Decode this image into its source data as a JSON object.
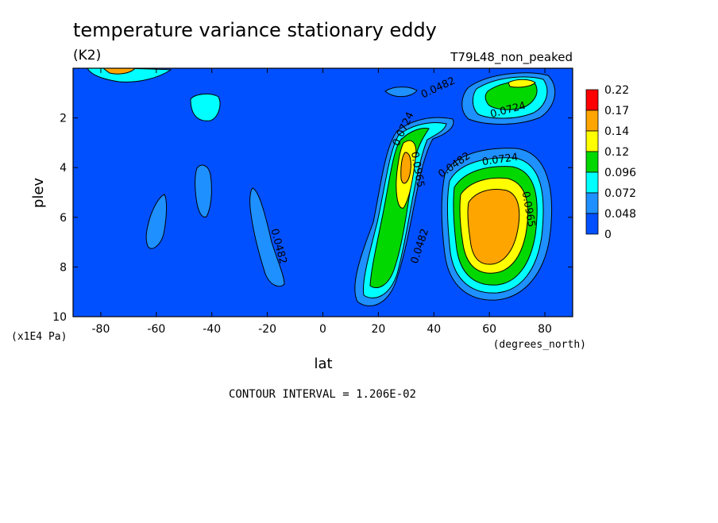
{
  "chart_data": {
    "type": "heatmap",
    "title": "temperature variance stationary eddy",
    "units": "(K2)",
    "run_label": "T79L48_non_peaked",
    "xlabel": "lat",
    "x_units": "(degrees_north)",
    "ylabel": "plev",
    "y_units": "(x1E4 Pa)",
    "xlim": [
      -90,
      90
    ],
    "ylim": [
      10,
      0
    ],
    "x_ticks": [
      -80,
      -60,
      -40,
      -20,
      0,
      20,
      40,
      60,
      80
    ],
    "x_tick_labels": [
      "-80",
      "-60",
      "-40",
      "-20",
      "0",
      "20",
      "40",
      "60",
      "80"
    ],
    "y_ticks": [
      2,
      4,
      6,
      8,
      10
    ],
    "y_tick_labels": [
      "2",
      "4",
      "6",
      "8",
      "10"
    ],
    "footer": "CONTOUR INTERVAL = 1.206E-02",
    "colorbar": {
      "levels": [
        "0.22",
        "0.17",
        "0.14",
        "0.12",
        "0.096",
        "0.072",
        "0.048",
        "0"
      ],
      "colors": [
        "#ff0000",
        "#ffa500",
        "#ffff00",
        "#00d800",
        "#00ffff",
        "#1e90ff",
        "#0050ff"
      ]
    },
    "contour_labels": [
      {
        "lat": -17,
        "plev": 7.2,
        "text": "0.0482",
        "angle": 75
      },
      {
        "lat": 42,
        "plev": 0.9,
        "text": "0.0482",
        "angle": -25
      },
      {
        "lat": 67,
        "plev": 1.8,
        "text": "0.0724",
        "angle": -15
      },
      {
        "lat": 30,
        "plev": 2.5,
        "text": "0.0724",
        "angle": -65
      },
      {
        "lat": 33,
        "plev": 4.1,
        "text": "0.0965",
        "angle": 80
      },
      {
        "lat": 48,
        "plev": 4.0,
        "text": "0.0482",
        "angle": -35
      },
      {
        "lat": 64,
        "plev": 3.8,
        "text": "0.0724",
        "angle": -8
      },
      {
        "lat": 36,
        "plev": 7.2,
        "text": "0.0482",
        "angle": -72
      },
      {
        "lat": 73,
        "plev": 5.7,
        "text": "0.0965",
        "angle": 80
      }
    ]
  }
}
